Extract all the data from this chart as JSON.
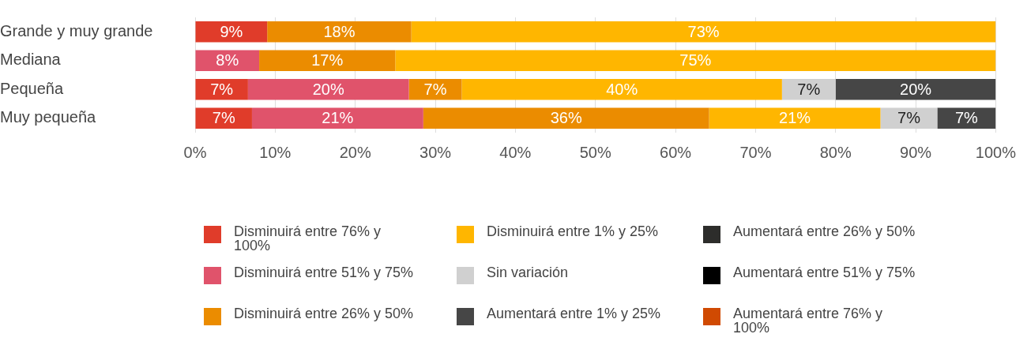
{
  "chart_data": {
    "type": "bar",
    "orientation": "horizontal",
    "stacked": true,
    "categories": [
      "Grande y muy grande",
      "Mediana",
      "Pequeña",
      "Muy pequeña"
    ],
    "series": [
      {
        "name": "Disminuirá entre 76% y 100%",
        "color": "#e03c2a",
        "values": [
          9,
          null,
          6.6,
          7.1
        ],
        "value_labels": [
          "9%",
          null,
          "7%",
          "7%"
        ]
      },
      {
        "name": "Disminuirá entre 51% y 75%",
        "color": "#e0536b",
        "values": [
          null,
          8,
          20.1,
          21.4
        ],
        "value_labels": [
          null,
          "8%",
          "20%",
          "21%"
        ]
      },
      {
        "name": "Disminuirá entre 26% y 50%",
        "color": "#eb8c00",
        "values": [
          18,
          17,
          6.6,
          35.7
        ],
        "value_labels": [
          "18%",
          "17%",
          "7%",
          "36%"
        ]
      },
      {
        "name": "Disminuirá entre 1% y 25%",
        "color": "#ffb600",
        "values": [
          73,
          75,
          40,
          21.4
        ],
        "value_labels": [
          "73%",
          "75%",
          "40%",
          "21%"
        ]
      },
      {
        "name": "Sin variación",
        "color": "#d0d0d0",
        "values": [
          null,
          null,
          6.7,
          7.1
        ],
        "value_labels": [
          null,
          null,
          "7%",
          "7%"
        ]
      },
      {
        "name": "Aumentará entre 1% y 25%",
        "color": "#464646",
        "values": [
          null,
          null,
          20,
          7.3
        ],
        "value_labels": [
          null,
          null,
          "20%",
          "7%"
        ]
      },
      {
        "name": "Aumentará entre 26% y 50%",
        "color": "#2d2d2b",
        "values": [
          null,
          null,
          null,
          null
        ]
      },
      {
        "name": "Aumentará entre 51% y 75%",
        "color": "#000000",
        "values": [
          null,
          null,
          null,
          null
        ]
      },
      {
        "name": "Aumentará entre 76% y 100%",
        "color": "#d04a02",
        "values": [
          null,
          null,
          null,
          null
        ]
      }
    ],
    "xlim": [
      0,
      100
    ],
    "xticks": [
      {
        "value": 0,
        "label": "0%"
      },
      {
        "value": 10,
        "label": "10%"
      },
      {
        "value": 20,
        "label": "20%"
      },
      {
        "value": 30,
        "label": "30%"
      },
      {
        "value": 40,
        "label": "40%"
      },
      {
        "value": 50,
        "label": "50%"
      },
      {
        "value": 60,
        "label": "60%"
      },
      {
        "value": 70,
        "label": "70%"
      },
      {
        "value": 80,
        "label": "80%"
      },
      {
        "value": 90,
        "label": "90%"
      },
      {
        "value": 100,
        "label": "100%"
      }
    ],
    "grid": "x",
    "legend": "bottom"
  }
}
